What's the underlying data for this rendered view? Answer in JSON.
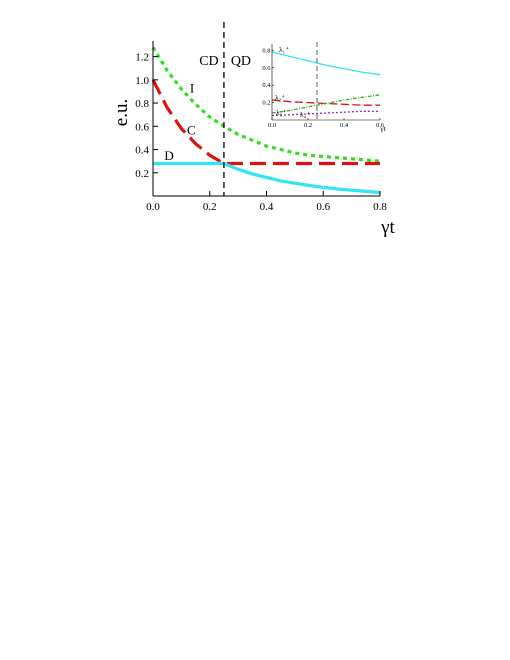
{
  "chart_data": [
    {
      "type": "line",
      "xlabel": "γt",
      "ylabel": "e.u.",
      "xlim": [
        0,
        0.8
      ],
      "ylim": [
        0,
        1.3
      ],
      "xticks": [
        "0.0",
        "0.2",
        "0.4",
        "0.6",
        "0.8"
      ],
      "yticks": [
        "0.2",
        "0.4",
        "0.6",
        "0.8",
        "1.0",
        "1.2"
      ],
      "grid": false,
      "regions": {
        "left": "CD",
        "right": "QD",
        "boundary_x": 0.25
      },
      "series": [
        {
          "name": "I",
          "style": "dotted",
          "color": "#33dd22",
          "x": [
            0,
            0.05,
            0.1,
            0.15,
            0.2,
            0.25,
            0.3,
            0.35,
            0.4,
            0.45,
            0.5,
            0.55,
            0.6,
            0.65,
            0.7,
            0.75,
            0.8
          ],
          "values": [
            1.28,
            1.08,
            0.92,
            0.79,
            0.68,
            0.6,
            0.53,
            0.48,
            0.43,
            0.4,
            0.37,
            0.35,
            0.34,
            0.33,
            0.32,
            0.31,
            0.3
          ]
        },
        {
          "name": "C",
          "style": "dashed",
          "color": "#dd1111",
          "x": [
            0,
            0.05,
            0.1,
            0.15,
            0.2,
            0.25,
            0.3,
            0.35,
            0.4,
            0.45,
            0.5,
            0.55,
            0.6,
            0.65,
            0.7,
            0.75,
            0.8
          ],
          "values": [
            1.0,
            0.76,
            0.58,
            0.45,
            0.35,
            0.28,
            0.28,
            0.28,
            0.28,
            0.28,
            0.28,
            0.28,
            0.28,
            0.28,
            0.28,
            0.28,
            0.28
          ]
        },
        {
          "name": "D",
          "style": "solid",
          "color": "#33e5f0",
          "x": [
            0,
            0.05,
            0.1,
            0.15,
            0.2,
            0.25,
            0.3,
            0.35,
            0.4,
            0.45,
            0.5,
            0.55,
            0.6,
            0.65,
            0.7,
            0.75,
            0.8
          ],
          "values": [
            0.28,
            0.28,
            0.28,
            0.28,
            0.28,
            0.28,
            0.23,
            0.19,
            0.16,
            0.13,
            0.11,
            0.09,
            0.075,
            0.06,
            0.05,
            0.04,
            0.03
          ]
        }
      ]
    },
    {
      "type": "line",
      "xlabel": "γt",
      "ylabel": "",
      "xlim": [
        0,
        0.6
      ],
      "ylim": [
        0,
        0.85
      ],
      "xticks": [
        "0.0",
        "0.2",
        "0.4",
        "0.6"
      ],
      "yticks": [
        "0.2",
        "0.4",
        "0.6",
        "0.8"
      ],
      "grid": false,
      "boundary_x": 0.25,
      "series": [
        {
          "name": "λ₁⁺",
          "style": "solid",
          "color": "#33e5f0",
          "x": [
            0,
            0.1,
            0.2,
            0.3,
            0.4,
            0.5,
            0.6
          ],
          "values": [
            0.78,
            0.73,
            0.68,
            0.63,
            0.59,
            0.55,
            0.52
          ]
        },
        {
          "name": "λ₂⁺",
          "style": "dashed",
          "color": "#dd1111",
          "x": [
            0,
            0.1,
            0.2,
            0.3,
            0.4,
            0.5,
            0.6
          ],
          "values": [
            0.23,
            0.21,
            0.2,
            0.19,
            0.18,
            0.17,
            0.17
          ]
        },
        {
          "name": "λ₃⁺",
          "style": "dashdot",
          "color": "#33aa11",
          "x": [
            0,
            0.1,
            0.2,
            0.3,
            0.4,
            0.5,
            0.6
          ],
          "values": [
            0.08,
            0.11,
            0.15,
            0.19,
            0.23,
            0.26,
            0.29
          ]
        },
        {
          "name": "λ₄⁺",
          "style": "dotted",
          "color": "#8833cc",
          "x": [
            0,
            0.1,
            0.2,
            0.3,
            0.4,
            0.5,
            0.6
          ],
          "values": [
            0.05,
            0.06,
            0.07,
            0.08,
            0.09,
            0.1,
            0.1
          ]
        }
      ]
    }
  ]
}
